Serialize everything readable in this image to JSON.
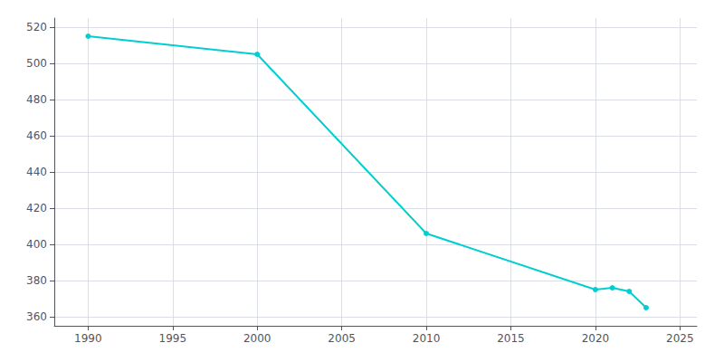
{
  "chart_data": {
    "type": "line",
    "x": [
      1990,
      2000,
      2010,
      2020,
      2021,
      2022,
      2023
    ],
    "values": [
      515,
      505,
      406,
      375,
      376,
      374,
      365
    ],
    "color": "#00CED1",
    "marker": "circle",
    "xlim": [
      1988,
      2026
    ],
    "ylim": [
      355,
      525
    ],
    "xticks": [
      1990,
      1995,
      2000,
      2005,
      2010,
      2015,
      2020,
      2025
    ],
    "yticks": [
      360,
      380,
      400,
      420,
      440,
      460,
      480,
      500,
      520
    ],
    "grid": true
  }
}
